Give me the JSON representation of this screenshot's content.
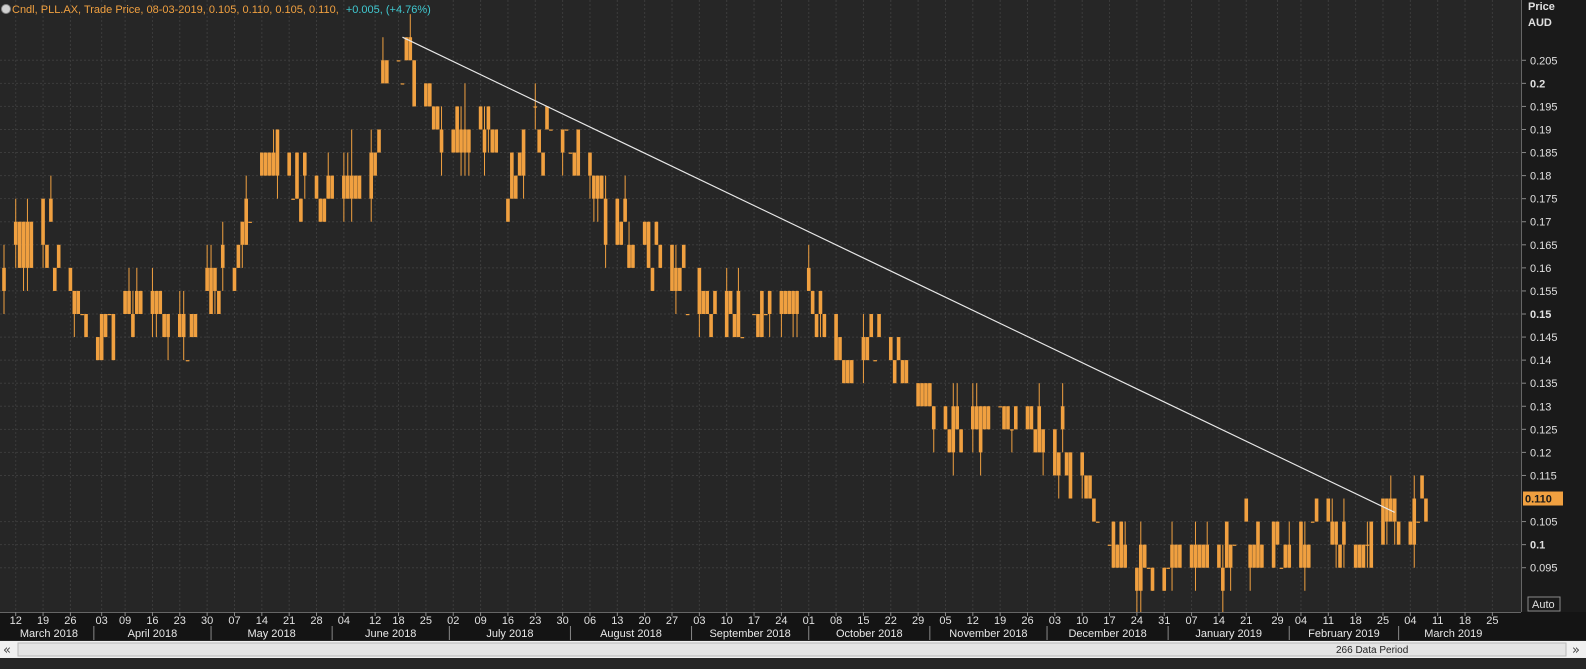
{
  "header": {
    "instrument": "Cndl, PLL.AX, Trade Price, 08-03-2019, 0.105, 0.110, 0.105, 0.110,",
    "change": "+0.005, (+4.76%)"
  },
  "axis": {
    "title_line1": "Price",
    "title_line2": "AUD",
    "last_price_label": "0.110",
    "auto_button": "Auto",
    "data_period": "266 Data Period",
    "scroll_left": "«",
    "scroll_right": "»"
  },
  "colors": {
    "background": "#262626",
    "candle": "#f0a040",
    "trendline": "#e8e8e8",
    "grid": "#3c3c3c",
    "header_orange": "#f0a040",
    "header_cyan": "#40c8d0"
  },
  "chart_data": {
    "type": "candlestick",
    "title": "Cndl, PLL.AX, Trade Price, 08-03-2019, 0.105, 0.110, 0.105, 0.110, +0.005, (+4.76%)",
    "ylabel": "Price AUD",
    "ylim": [
      0.088,
      0.212
    ],
    "x_range": [
      "2018-03-09",
      "2019-03-29"
    ],
    "y_ticks": [
      "0.095",
      "0.1",
      "0.105",
      "0.110",
      "0.115",
      "0.12",
      "0.125",
      "0.13",
      "0.135",
      "0.14",
      "0.145",
      "0.15",
      "0.155",
      "0.16",
      "0.165",
      "0.17",
      "0.175",
      "0.18",
      "0.185",
      "0.19",
      "0.195",
      "0.2",
      "0.205"
    ],
    "bold_y_ticks": [
      "0.1",
      "0.15",
      "0.2"
    ],
    "date_ticks": [
      {
        "label": "12",
        "date": "2018-03-12"
      },
      {
        "label": "19",
        "date": "2018-03-19"
      },
      {
        "label": "26",
        "date": "2018-03-26"
      },
      {
        "label": "03",
        "date": "2018-04-03"
      },
      {
        "label": "09",
        "date": "2018-04-09"
      },
      {
        "label": "16",
        "date": "2018-04-16"
      },
      {
        "label": "23",
        "date": "2018-04-23"
      },
      {
        "label": "30",
        "date": "2018-04-30"
      },
      {
        "label": "07",
        "date": "2018-05-07"
      },
      {
        "label": "14",
        "date": "2018-05-14"
      },
      {
        "label": "21",
        "date": "2018-05-21"
      },
      {
        "label": "28",
        "date": "2018-05-28"
      },
      {
        "label": "04",
        "date": "2018-06-04"
      },
      {
        "label": "12",
        "date": "2018-06-12"
      },
      {
        "label": "18",
        "date": "2018-06-18"
      },
      {
        "label": "25",
        "date": "2018-06-25"
      },
      {
        "label": "02",
        "date": "2018-07-02"
      },
      {
        "label": "09",
        "date": "2018-07-09"
      },
      {
        "label": "16",
        "date": "2018-07-16"
      },
      {
        "label": "23",
        "date": "2018-07-23"
      },
      {
        "label": "30",
        "date": "2018-07-30"
      },
      {
        "label": "06",
        "date": "2018-08-06"
      },
      {
        "label": "13",
        "date": "2018-08-13"
      },
      {
        "label": "20",
        "date": "2018-08-20"
      },
      {
        "label": "27",
        "date": "2018-08-27"
      },
      {
        "label": "03",
        "date": "2018-09-03"
      },
      {
        "label": "10",
        "date": "2018-09-10"
      },
      {
        "label": "17",
        "date": "2018-09-17"
      },
      {
        "label": "24",
        "date": "2018-09-24"
      },
      {
        "label": "01",
        "date": "2018-10-01"
      },
      {
        "label": "08",
        "date": "2018-10-08"
      },
      {
        "label": "15",
        "date": "2018-10-15"
      },
      {
        "label": "22",
        "date": "2018-10-22"
      },
      {
        "label": "29",
        "date": "2018-10-29"
      },
      {
        "label": "05",
        "date": "2018-11-05"
      },
      {
        "label": "12",
        "date": "2018-11-12"
      },
      {
        "label": "19",
        "date": "2018-11-19"
      },
      {
        "label": "26",
        "date": "2018-11-26"
      },
      {
        "label": "03",
        "date": "2018-12-03"
      },
      {
        "label": "10",
        "date": "2018-12-10"
      },
      {
        "label": "17",
        "date": "2018-12-17"
      },
      {
        "label": "24",
        "date": "2018-12-24"
      },
      {
        "label": "31",
        "date": "2018-12-31"
      },
      {
        "label": "07",
        "date": "2019-01-07"
      },
      {
        "label": "14",
        "date": "2019-01-14"
      },
      {
        "label": "21",
        "date": "2019-01-21"
      },
      {
        "label": "29",
        "date": "2019-01-29"
      },
      {
        "label": "04",
        "date": "2019-02-04"
      },
      {
        "label": "11",
        "date": "2019-02-11"
      },
      {
        "label": "18",
        "date": "2019-02-18"
      },
      {
        "label": "25",
        "date": "2019-02-25"
      },
      {
        "label": "04",
        "date": "2019-03-04"
      },
      {
        "label": "11",
        "date": "2019-03-11"
      },
      {
        "label": "18",
        "date": "2019-03-18"
      },
      {
        "label": "25",
        "date": "2019-03-25"
      }
    ],
    "month_labels": [
      {
        "label": "March 2018",
        "date": "2018-03-09"
      },
      {
        "label": "April 2018",
        "date": "2018-04-01"
      },
      {
        "label": "May 2018",
        "date": "2018-05-01"
      },
      {
        "label": "June 2018",
        "date": "2018-06-01"
      },
      {
        "label": "July 2018",
        "date": "2018-07-01"
      },
      {
        "label": "August 2018",
        "date": "2018-08-01"
      },
      {
        "label": "September 2018",
        "date": "2018-09-01"
      },
      {
        "label": "October 2018",
        "date": "2018-10-01"
      },
      {
        "label": "November 2018",
        "date": "2018-11-01"
      },
      {
        "label": "December 2018",
        "date": "2018-12-01"
      },
      {
        "label": "January 2019",
        "date": "2019-01-01"
      },
      {
        "label": "February 2019",
        "date": "2019-02-01"
      },
      {
        "label": "March 2019",
        "date": "2019-03-01"
      }
    ],
    "trendline": {
      "start": {
        "date": "2018-06-19",
        "price": 0.21
      },
      "end": {
        "date": "2019-02-28",
        "price": 0.107
      }
    },
    "anchors": [
      [
        "2018-03-09",
        0.16
      ],
      [
        "2018-03-14",
        0.165
      ],
      [
        "2018-03-19",
        0.17
      ],
      [
        "2018-03-23",
        0.16
      ],
      [
        "2018-03-28",
        0.15
      ],
      [
        "2018-04-03",
        0.145
      ],
      [
        "2018-04-09",
        0.15
      ],
      [
        "2018-04-16",
        0.155
      ],
      [
        "2018-04-20",
        0.145
      ],
      [
        "2018-04-25",
        0.145
      ],
      [
        "2018-04-30",
        0.155
      ],
      [
        "2018-05-07",
        0.16
      ],
      [
        "2018-05-11",
        0.175
      ],
      [
        "2018-05-17",
        0.185
      ],
      [
        "2018-05-23",
        0.18
      ],
      [
        "2018-05-28",
        0.175
      ],
      [
        "2018-06-04",
        0.175
      ],
      [
        "2018-06-11",
        0.18
      ],
      [
        "2018-06-15",
        0.2
      ],
      [
        "2018-06-19",
        0.205
      ],
      [
        "2018-06-25",
        0.195
      ],
      [
        "2018-07-02",
        0.19
      ],
      [
        "2018-07-09",
        0.19
      ],
      [
        "2018-07-13",
        0.185
      ],
      [
        "2018-07-18",
        0.18
      ],
      [
        "2018-07-23",
        0.19
      ],
      [
        "2018-07-30",
        0.19
      ],
      [
        "2018-08-03",
        0.185
      ],
      [
        "2018-08-10",
        0.17
      ],
      [
        "2018-08-17",
        0.165
      ],
      [
        "2018-08-24",
        0.165
      ],
      [
        "2018-08-31",
        0.155
      ],
      [
        "2018-09-07",
        0.15
      ],
      [
        "2018-09-14",
        0.15
      ],
      [
        "2018-09-21",
        0.15
      ],
      [
        "2018-09-28",
        0.155
      ],
      [
        "2018-10-05",
        0.15
      ],
      [
        "2018-10-12",
        0.14
      ],
      [
        "2018-10-19",
        0.145
      ],
      [
        "2018-10-26",
        0.14
      ],
      [
        "2018-11-02",
        0.13
      ],
      [
        "2018-11-09",
        0.125
      ],
      [
        "2018-11-16",
        0.125
      ],
      [
        "2018-11-23",
        0.13
      ],
      [
        "2018-11-30",
        0.125
      ],
      [
        "2018-12-04",
        0.12
      ],
      [
        "2018-12-10",
        0.115
      ],
      [
        "2018-12-14",
        0.105
      ],
      [
        "2018-12-19",
        0.1
      ],
      [
        "2018-12-24",
        0.093
      ],
      [
        "2018-12-28",
        0.093
      ],
      [
        "2019-01-03",
        0.095
      ],
      [
        "2019-01-09",
        0.096
      ],
      [
        "2019-01-15",
        0.098
      ],
      [
        "2019-01-21",
        0.1
      ],
      [
        "2019-01-28",
        0.098
      ],
      [
        "2019-02-04",
        0.1
      ],
      [
        "2019-02-11",
        0.102
      ],
      [
        "2019-02-18",
        0.098
      ],
      [
        "2019-02-21",
        0.097
      ],
      [
        "2019-02-25",
        0.105
      ],
      [
        "2019-02-28",
        0.108
      ],
      [
        "2019-03-04",
        0.105
      ],
      [
        "2019-03-08",
        0.11
      ]
    ],
    "last_bar": {
      "date": "2019-03-08",
      "open": 0.105,
      "high": 0.11,
      "low": 0.105,
      "close": 0.11
    }
  }
}
